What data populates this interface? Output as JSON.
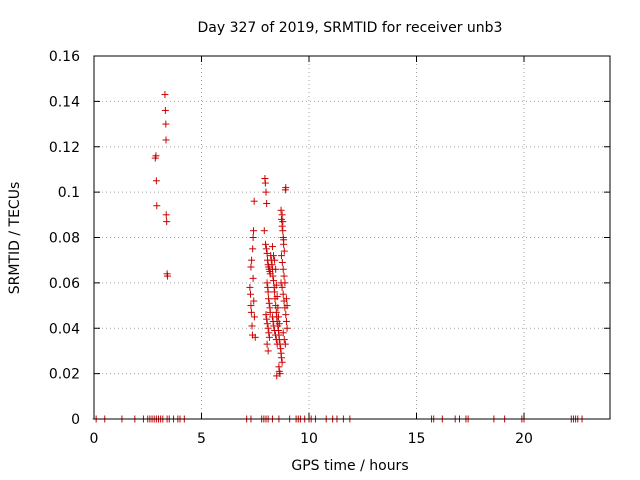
{
  "chart_data": {
    "type": "scatter",
    "title": "Day 327 of 2019, SRMTID for receiver unb3",
    "xlabel": "GPS time / hours",
    "ylabel": "SRMTID / TECUs",
    "xlim": [
      0,
      24
    ],
    "ylim": [
      0,
      0.16
    ],
    "xticks": [
      0,
      5,
      10,
      15,
      20
    ],
    "yticks": [
      0,
      0.02,
      0.04,
      0.06,
      0.08,
      0.1,
      0.12,
      0.14,
      0.16
    ],
    "xtick_labels": [
      "0",
      "5",
      "10",
      "15",
      "20"
    ],
    "ytick_labels": [
      "0",
      "0.02",
      "0.04",
      "0.06",
      "0.08",
      "0.1",
      "0.12",
      "0.14",
      "0.16"
    ],
    "grid": true,
    "marker": "+",
    "color": "#cc0000",
    "series": [
      {
        "name": "SRMTID",
        "points": [
          [
            0.1,
            0
          ],
          [
            0.5,
            0
          ],
          [
            1.3,
            0
          ],
          [
            1.9,
            0
          ],
          [
            2.3,
            0
          ],
          [
            2.5,
            0
          ],
          [
            2.6,
            0
          ],
          [
            2.7,
            0
          ],
          [
            2.8,
            0
          ],
          [
            2.9,
            0
          ],
          [
            3.0,
            0
          ],
          [
            3.1,
            0
          ],
          [
            3.2,
            0
          ],
          [
            3.4,
            0
          ],
          [
            3.5,
            0
          ],
          [
            3.7,
            0
          ],
          [
            3.9,
            0
          ],
          [
            4.0,
            0
          ],
          [
            4.2,
            0
          ],
          [
            7.1,
            0
          ],
          [
            7.3,
            0
          ],
          [
            7.8,
            0
          ],
          [
            7.9,
            0
          ],
          [
            8.0,
            0
          ],
          [
            8.1,
            0
          ],
          [
            8.3,
            0
          ],
          [
            8.6,
            0
          ],
          [
            9.1,
            0
          ],
          [
            9.4,
            0
          ],
          [
            9.5,
            0
          ],
          [
            9.6,
            0
          ],
          [
            9.8,
            0
          ],
          [
            10.0,
            0
          ],
          [
            10.1,
            0
          ],
          [
            10.3,
            0
          ],
          [
            10.8,
            0
          ],
          [
            11.1,
            0
          ],
          [
            11.3,
            0
          ],
          [
            11.6,
            0
          ],
          [
            11.9,
            0
          ],
          [
            15.7,
            0
          ],
          [
            15.8,
            0
          ],
          [
            16.2,
            0
          ],
          [
            16.8,
            0
          ],
          [
            17.0,
            0
          ],
          [
            17.3,
            0
          ],
          [
            17.4,
            0
          ],
          [
            18.6,
            0
          ],
          [
            19.1,
            0
          ],
          [
            19.9,
            0
          ],
          [
            20.0,
            0
          ],
          [
            22.2,
            0
          ],
          [
            22.3,
            0
          ],
          [
            22.4,
            0
          ],
          [
            22.5,
            0
          ],
          [
            22.7,
            0
          ],
          [
            2.85,
            0.115
          ],
          [
            2.88,
            0.116
          ],
          [
            2.9,
            0.105
          ],
          [
            2.92,
            0.094
          ],
          [
            3.3,
            0.143
          ],
          [
            3.32,
            0.136
          ],
          [
            3.34,
            0.13
          ],
          [
            3.35,
            0.123
          ],
          [
            3.36,
            0.09
          ],
          [
            3.38,
            0.087
          ],
          [
            3.4,
            0.064
          ],
          [
            3.42,
            0.063
          ],
          [
            7.25,
            0.058
          ],
          [
            7.28,
            0.055
          ],
          [
            7.3,
            0.05
          ],
          [
            7.32,
            0.047
          ],
          [
            7.35,
            0.041
          ],
          [
            7.37,
            0.037
          ],
          [
            7.3,
            0.067
          ],
          [
            7.33,
            0.07
          ],
          [
            7.38,
            0.075
          ],
          [
            7.4,
            0.08
          ],
          [
            7.42,
            0.083
          ],
          [
            7.45,
            0.096
          ],
          [
            7.4,
            0.062
          ],
          [
            7.43,
            0.052
          ],
          [
            7.46,
            0.045
          ],
          [
            7.5,
            0.036
          ],
          [
            7.95,
            0.106
          ],
          [
            7.97,
            0.104
          ],
          [
            8.0,
            0.1
          ],
          [
            8.03,
            0.095
          ],
          [
            7.92,
            0.083
          ],
          [
            7.98,
            0.077
          ],
          [
            8.02,
            0.075
          ],
          [
            8.05,
            0.073
          ],
          [
            8.07,
            0.07
          ],
          [
            8.1,
            0.068
          ],
          [
            8.12,
            0.067
          ],
          [
            8.15,
            0.066
          ],
          [
            8.18,
            0.065
          ],
          [
            8.2,
            0.064
          ],
          [
            8.05,
            0.06
          ],
          [
            8.08,
            0.058
          ],
          [
            8.1,
            0.056
          ],
          [
            8.12,
            0.053
          ],
          [
            8.15,
            0.051
          ],
          [
            8.18,
            0.049
          ],
          [
            8.2,
            0.047
          ],
          [
            8.0,
            0.046
          ],
          [
            8.03,
            0.044
          ],
          [
            8.06,
            0.042
          ],
          [
            8.1,
            0.04
          ],
          [
            8.13,
            0.038
          ],
          [
            8.16,
            0.036
          ],
          [
            8.05,
            0.033
          ],
          [
            8.1,
            0.03
          ],
          [
            8.22,
            0.072
          ],
          [
            8.25,
            0.07
          ],
          [
            8.28,
            0.068
          ],
          [
            8.3,
            0.066
          ],
          [
            8.32,
            0.063
          ],
          [
            8.35,
            0.061
          ],
          [
            8.38,
            0.058
          ],
          [
            8.4,
            0.056
          ],
          [
            8.42,
            0.053
          ],
          [
            8.45,
            0.05
          ],
          [
            8.48,
            0.047
          ],
          [
            8.5,
            0.045
          ],
          [
            8.52,
            0.043
          ],
          [
            8.55,
            0.041
          ],
          [
            8.58,
            0.039
          ],
          [
            8.6,
            0.037
          ],
          [
            8.62,
            0.035
          ],
          [
            8.65,
            0.033
          ],
          [
            8.68,
            0.031
          ],
          [
            8.7,
            0.029
          ],
          [
            8.72,
            0.027
          ],
          [
            8.75,
            0.025
          ],
          [
            8.6,
            0.023
          ],
          [
            8.62,
            0.021
          ],
          [
            8.65,
            0.02
          ],
          [
            8.5,
            0.019
          ],
          [
            8.3,
            0.076
          ],
          [
            8.35,
            0.072
          ],
          [
            8.4,
            0.07
          ],
          [
            8.45,
            0.066
          ],
          [
            8.48,
            0.059
          ],
          [
            8.52,
            0.054
          ],
          [
            8.55,
            0.049
          ],
          [
            8.58,
            0.045
          ],
          [
            8.62,
            0.042
          ],
          [
            8.3,
            0.045
          ],
          [
            8.33,
            0.043
          ],
          [
            8.36,
            0.041
          ],
          [
            8.4,
            0.039
          ],
          [
            8.44,
            0.037
          ],
          [
            8.48,
            0.035
          ],
          [
            8.52,
            0.033
          ],
          [
            8.7,
            0.092
          ],
          [
            8.72,
            0.088
          ],
          [
            8.75,
            0.085
          ],
          [
            8.78,
            0.083
          ],
          [
            8.8,
            0.08
          ],
          [
            8.82,
            0.077
          ],
          [
            8.85,
            0.074
          ],
          [
            8.72,
            0.072
          ],
          [
            8.76,
            0.069
          ],
          [
            8.8,
            0.066
          ],
          [
            8.84,
            0.063
          ],
          [
            8.88,
            0.06
          ],
          [
            8.75,
            0.058
          ],
          [
            8.8,
            0.055
          ],
          [
            8.84,
            0.052
          ],
          [
            8.88,
            0.049
          ],
          [
            8.92,
            0.046
          ],
          [
            8.95,
            0.043
          ],
          [
            8.98,
            0.04
          ],
          [
            8.8,
            0.038
          ],
          [
            8.85,
            0.035
          ],
          [
            8.9,
            0.033
          ],
          [
            8.95,
            0.053
          ],
          [
            8.98,
            0.05
          ],
          [
            8.9,
            0.101
          ],
          [
            8.92,
            0.102
          ],
          [
            8.75,
            0.09
          ],
          [
            8.78,
            0.087
          ],
          [
            8.82,
            0.079
          ],
          [
            8.7,
            0.06
          ]
        ]
      }
    ]
  }
}
